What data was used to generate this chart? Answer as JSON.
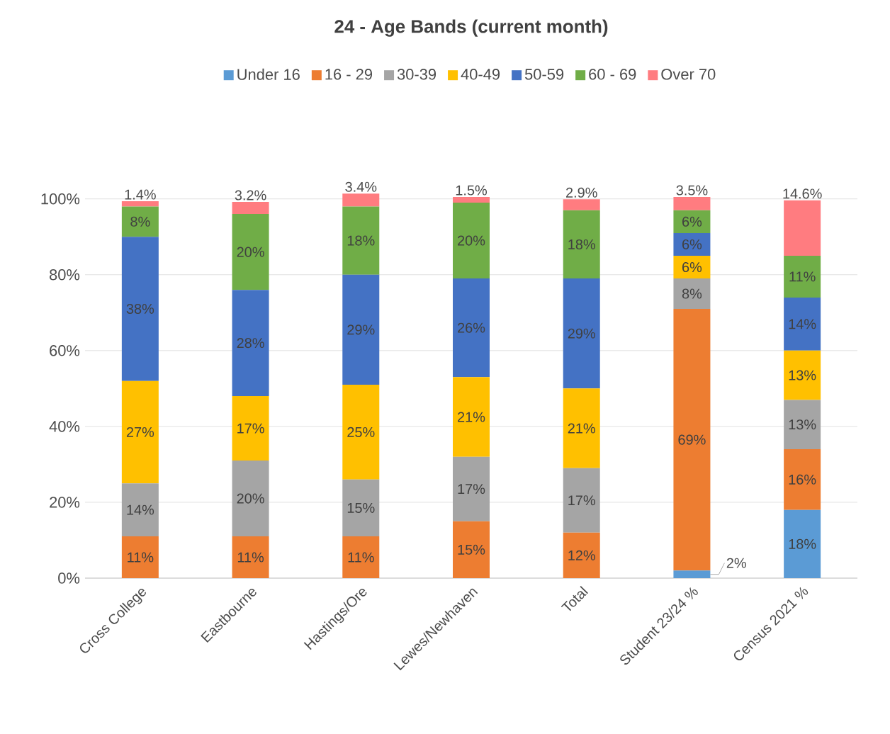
{
  "chart_data": {
    "type": "bar",
    "stacked": true,
    "title": "24 - Age Bands (current month)",
    "categories": [
      "Cross College",
      "Eastbourne",
      "Hastings/Ore",
      "Lewes/Newhaven",
      "Total",
      "Student 23/24 %",
      "Census 2021 %"
    ],
    "series": [
      {
        "name": "Under 16",
        "color": "#5b9bd5",
        "values": [
          0,
          0,
          0,
          0,
          0,
          2,
          18
        ],
        "value_labels": [
          null,
          null,
          null,
          null,
          null,
          "2%",
          "18%"
        ]
      },
      {
        "name": "16 - 29",
        "color": "#ed7d31",
        "values": [
          11,
          11,
          11,
          15,
          12,
          69,
          16
        ],
        "value_labels": [
          "11%",
          "11%",
          "11%",
          "15%",
          "12%",
          "69%",
          "16%"
        ]
      },
      {
        "name": "30-39",
        "color": "#a5a5a5",
        "values": [
          14,
          20,
          15,
          17,
          17,
          8,
          13
        ],
        "value_labels": [
          "14%",
          "20%",
          "15%",
          "17%",
          "17%",
          "8%",
          "13%"
        ]
      },
      {
        "name": "40-49",
        "color": "#ffc000",
        "values": [
          27,
          17,
          25,
          21,
          21,
          6,
          13
        ],
        "value_labels": [
          "27%",
          "17%",
          "25%",
          "21%",
          "21%",
          "6%",
          "13%"
        ]
      },
      {
        "name": "50-59",
        "color": "#4472c4",
        "values": [
          38,
          28,
          29,
          26,
          29,
          6,
          14
        ],
        "value_labels": [
          "38%",
          "28%",
          "29%",
          "26%",
          "29%",
          "6%",
          "14%"
        ]
      },
      {
        "name": "60 - 69",
        "color": "#70ad47",
        "values": [
          8,
          20,
          18,
          20,
          18,
          6,
          11
        ],
        "value_labels": [
          "8%",
          "20%",
          "18%",
          "20%",
          "18%",
          "6%",
          "11%"
        ]
      },
      {
        "name": "Over 70",
        "color": "#ff7c80",
        "values": [
          1.4,
          3.2,
          3.4,
          1.5,
          2.9,
          3.5,
          14.6
        ],
        "value_labels": [
          "1.4%",
          "3.2%",
          "3.4%",
          "1.5%",
          "2.9%",
          "3.5%",
          "14.6%"
        ]
      }
    ],
    "ylim": [
      0,
      102
    ],
    "yticks": [
      {
        "value": 0,
        "label": "0%"
      },
      {
        "value": 20,
        "label": "20%"
      },
      {
        "value": 40,
        "label": "40%"
      },
      {
        "value": 60,
        "label": "60%"
      },
      {
        "value": 80,
        "label": "80%"
      },
      {
        "value": 100,
        "label": "100%"
      }
    ],
    "grid": "y",
    "legend": "top"
  }
}
